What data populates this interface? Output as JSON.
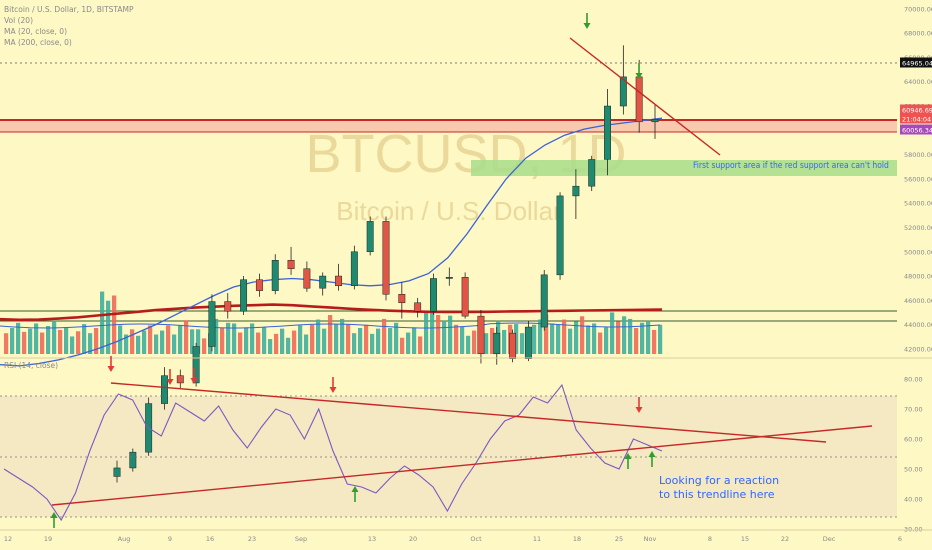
{
  "header": {
    "symbol_line": "Bitcoin / U.S. Dollar, 1D, BITSTAMP",
    "vol_line": "Vol (20)",
    "ma20_line": "MA (20, close, 0)",
    "ma200_line": "MA (200, close, 0)",
    "rsi_line": "RSI (14, close)"
  },
  "watermark": {
    "ticker": "BTCUSD, 1D",
    "name": "Bitcoin / U.S. Dollar"
  },
  "colors": {
    "up": "#26a69a",
    "down": "#ef5350",
    "ma20": "#3a63d8",
    "ma200": "#b71c1c",
    "trend": "#c62828",
    "rsi": "#7e57c2",
    "arrow_green": "#2e9e2e",
    "arrow_red": "#e53935",
    "support_green": "#a8dd8a",
    "support_red_band": "#f6b9a5",
    "note_text": "#3366ff"
  },
  "chart_data": [
    {
      "type": "candlestick",
      "title": "",
      "xlabel": "",
      "ylabel": "",
      "x_ticks": [
        "12",
        "19",
        "Aug",
        "9",
        "16",
        "23",
        "Sep",
        "13",
        "20",
        "Oct",
        "11",
        "18",
        "25",
        "Nov",
        "8",
        "15",
        "22",
        "Dec",
        "6"
      ],
      "y_ticks": [
        "42000.00",
        "44000.00",
        "46000.00",
        "48000.00",
        "50000.00",
        "52000.00",
        "54000.00",
        "56000.00",
        "58000.00",
        "60000.00",
        "62000.00",
        "64000.00",
        "66000.00",
        "68000.00",
        "70000.00"
      ],
      "ylim": [
        41500,
        70400
      ],
      "price_labels": [
        {
          "label": "64965.04",
          "value": 64965.04
        },
        {
          "label": "60946.69",
          "value": 60946.69
        },
        {
          "label": "21:04:04",
          "value": 60400
        },
        {
          "label": "60056.34",
          "value": 60056.34
        }
      ],
      "series": [
        {
          "name": "MA (20, close, 0)",
          "values": [
            40700,
            40600,
            40800,
            41100,
            41500,
            42000,
            42600,
            43300,
            44000,
            44800,
            45600,
            46400,
            47100,
            47500,
            47700,
            47800,
            47700,
            47500,
            47300,
            47200,
            47300,
            47600,
            48200,
            49500,
            51500,
            53800,
            56000,
            57700,
            58800,
            59600,
            60100,
            60400,
            60600,
            60800,
            61000
          ]
        },
        {
          "name": "MA (200, close, 0)",
          "values": [
            44450,
            44400,
            44420,
            44500,
            44600,
            44750,
            44900,
            45050,
            45200,
            45300,
            45400,
            45480,
            45550,
            45600,
            45650,
            45600,
            45500,
            45400,
            45300,
            45220,
            45150,
            45100,
            45060,
            45050,
            45050,
            45060,
            45080,
            45100,
            45120,
            45140,
            45160,
            45180,
            45200,
            45220,
            45240
          ]
        }
      ],
      "candles_ohlc_sample": [
        [
          31500,
          32800,
          31000,
          32200
        ],
        [
          32200,
          33800,
          31900,
          33500
        ],
        [
          33500,
          38000,
          33200,
          37500
        ],
        [
          37500,
          40500,
          37000,
          39800
        ],
        [
          39800,
          40300,
          38700,
          39200
        ],
        [
          39200,
          42500,
          38900,
          42200
        ],
        [
          42200,
          46500,
          41800,
          45900
        ],
        [
          45900,
          46600,
          44500,
          45100
        ],
        [
          45100,
          48000,
          44800,
          47700
        ],
        [
          47700,
          48200,
          46300,
          46800
        ],
        [
          46800,
          49800,
          46500,
          49300
        ],
        [
          49300,
          50400,
          48100,
          48600
        ],
        [
          48600,
          49200,
          46700,
          47000
        ],
        [
          47000,
          48300,
          46400,
          48000
        ],
        [
          48000,
          49000,
          46800,
          47200
        ],
        [
          47200,
          50500,
          46900,
          50000
        ],
        [
          50000,
          52900,
          49700,
          52500
        ],
        [
          52500,
          52900,
          46000,
          46500
        ],
        [
          46500,
          47500,
          44500,
          45800
        ],
        [
          45800,
          46200,
          44600,
          45100
        ],
        [
          45100,
          48200,
          44800,
          47800
        ],
        [
          47800,
          48700,
          47200,
          47900
        ],
        [
          47900,
          48300,
          44500,
          44700
        ],
        [
          44700,
          45200,
          40800,
          41600
        ],
        [
          41600,
          43800,
          40700,
          43300
        ],
        [
          43300,
          43600,
          40900,
          41200
        ],
        [
          41200,
          44300,
          41000,
          43800
        ],
        [
          43800,
          48500,
          43500,
          48100
        ],
        [
          48100,
          54900,
          47700,
          54600
        ],
        [
          54600,
          56800,
          52700,
          55400
        ],
        [
          55400,
          57900,
          55000,
          57600
        ],
        [
          57600,
          63400,
          56300,
          62000
        ],
        [
          62000,
          67000,
          61300,
          64400
        ],
        [
          64400,
          65800,
          59800,
          60700
        ],
        [
          60700,
          62100,
          59300,
          60900
        ]
      ]
    },
    {
      "type": "bar",
      "title": "",
      "series": [
        {
          "name": "Vol (20)",
          "values": [
            3.2,
            2.9,
            3.1,
            2.7,
            3.0,
            7.8,
            2.4,
            2.8,
            2.6,
            3.2,
            2.4,
            3.8,
            2.9,
            2.7,
            2.3,
            2.6,
            3.3,
            4.6,
            3.0,
            2.7,
            3.4,
            2.5,
            5.6,
            3.9,
            2.8,
            3.0,
            3.3,
            2.6,
            4.5,
            3.5,
            3.8,
            3.3,
            4.8,
            3.6,
            3.1
          ]
        }
      ]
    },
    {
      "type": "line",
      "title": "",
      "x_ticks": [
        "12",
        "19",
        "Aug",
        "9",
        "16",
        "23",
        "Sep",
        "13",
        "20",
        "Oct",
        "11",
        "18",
        "25",
        "Nov",
        "8",
        "15",
        "22",
        "Dec",
        "6"
      ],
      "y_ticks": [
        "30.00",
        "40.00",
        "50.00",
        "60.00",
        "70.00",
        "80.00"
      ],
      "ylim": [
        27,
        84
      ],
      "series": [
        {
          "name": "RSI (14, close)",
          "values": [
            50,
            47,
            44,
            40,
            33,
            42,
            56,
            68,
            75,
            73,
            64,
            61,
            72,
            69,
            66,
            71,
            63,
            57,
            64,
            70,
            68,
            60,
            70,
            56,
            45,
            44,
            42,
            47,
            51,
            48,
            44,
            36,
            45,
            52,
            60,
            66,
            68,
            74,
            72,
            78,
            63,
            57,
            52,
            50,
            60,
            58,
            56
          ]
        }
      ],
      "reference_lines": [
        30,
        50,
        70
      ]
    }
  ],
  "annotations": {
    "support_note": "First support area if the red support area can't hold",
    "rsi_note_line1": "Looking for a reaction",
    "rsi_note_line2": "to this trendline here"
  }
}
